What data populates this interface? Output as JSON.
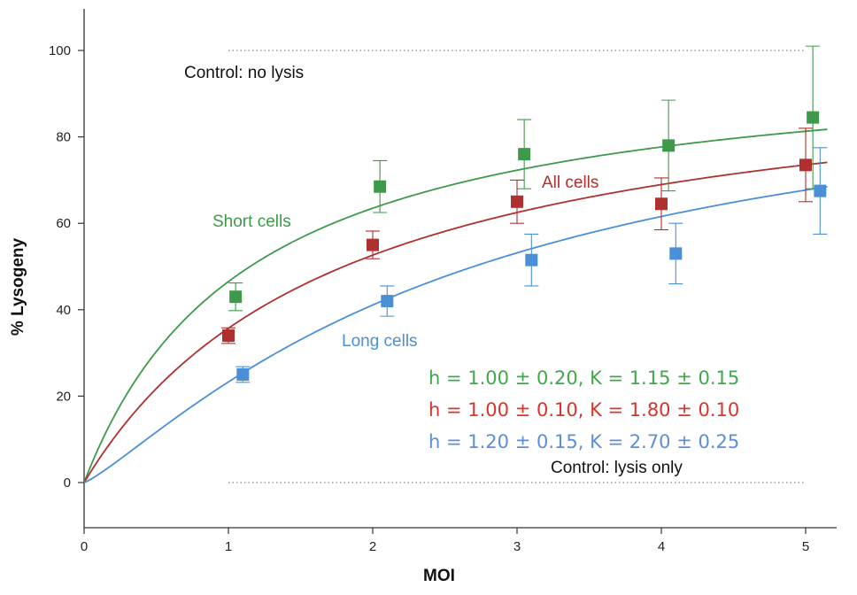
{
  "chart_data": {
    "type": "scatter",
    "title": "",
    "xlabel": "MOI",
    "ylabel": "% Lysogeny",
    "xlim": [
      0,
      5.15
    ],
    "ylim": [
      -10,
      110
    ],
    "xticks": [
      "0",
      "1",
      "2",
      "3",
      "4",
      "5"
    ],
    "yticks": [
      "0",
      "20",
      "40",
      "60",
      "80",
      "100"
    ],
    "grid": false,
    "reference_lines": [
      {
        "name": "Control: no lysis",
        "y": 100
      },
      {
        "name": "Control: lysis only",
        "y": 0
      }
    ],
    "series": [
      {
        "name": "Short cells",
        "color": "#3e9a4a",
        "x": [
          1.05,
          2.05,
          3.05,
          4.05,
          5.05
        ],
        "y": [
          43,
          68.5,
          76,
          78,
          84.5
        ],
        "err": [
          3.2,
          6,
          8,
          10.5,
          16.5
        ],
        "fit": {
          "h": 1.0,
          "K": 1.15
        },
        "fit_label": "h = 1.00 ± 0.20, K = 1.15 ± 0.15"
      },
      {
        "name": "All cells",
        "color": "#b03030",
        "x": [
          1.0,
          2.0,
          3.0,
          4.0,
          5.0
        ],
        "y": [
          34,
          55,
          65,
          64.5,
          73.5
        ],
        "err": [
          1.8,
          3.2,
          5,
          6,
          8.5
        ],
        "fit": {
          "h": 1.0,
          "K": 1.8
        },
        "fit_label": "h = 1.00 ± 0.10, K = 1.80 ± 0.10"
      },
      {
        "name": "Long cells",
        "color": "#4a90d9",
        "x": [
          1.1,
          2.1,
          3.1,
          4.1,
          5.1
        ],
        "y": [
          25,
          42,
          51.5,
          53,
          67.5
        ],
        "err": [
          1.8,
          3.5,
          6,
          7,
          10
        ],
        "fit": {
          "h": 1.2,
          "K": 2.7
        },
        "fit_label": "h = 1.20 ± 0.15, K = 2.70 ± 0.25"
      }
    ],
    "fit_label_colors": [
      "#3ea84a",
      "#d9342b",
      "#5b8fd6"
    ]
  }
}
